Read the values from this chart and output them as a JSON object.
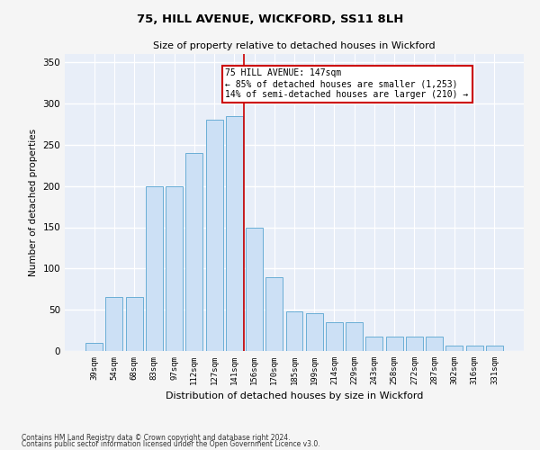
{
  "title": "75, HILL AVENUE, WICKFORD, SS11 8LH",
  "subtitle": "Size of property relative to detached houses in Wickford",
  "xlabel": "Distribution of detached houses by size in Wickford",
  "ylabel": "Number of detached properties",
  "bar_color": "#cce0f5",
  "bar_edge_color": "#6aaed6",
  "bg_color": "#e8eef8",
  "grid_color": "#ffffff",
  "fig_bg_color": "#f5f5f5",
  "categories": [
    "39sqm",
    "54sqm",
    "68sqm",
    "83sqm",
    "97sqm",
    "112sqm",
    "127sqm",
    "141sqm",
    "156sqm",
    "170sqm",
    "185sqm",
    "199sqm",
    "214sqm",
    "229sqm",
    "243sqm",
    "258sqm",
    "272sqm",
    "287sqm",
    "302sqm",
    "316sqm",
    "331sqm"
  ],
  "values": [
    10,
    65,
    65,
    200,
    200,
    240,
    280,
    285,
    150,
    90,
    48,
    46,
    35,
    35,
    18,
    18,
    18,
    18,
    7,
    7,
    7
  ],
  "ylim": [
    0,
    360
  ],
  "yticks": [
    0,
    50,
    100,
    150,
    200,
    250,
    300,
    350
  ],
  "vline_bin_index": 7,
  "vline_color": "#cc0000",
  "property_label": "75 HILL AVENUE: 147sqm",
  "annotation_line1": "← 85% of detached houses are smaller (1,253)",
  "annotation_line2": "14% of semi-detached houses are larger (210) →",
  "annotation_box_color": "#ffffff",
  "annotation_box_edge_color": "#cc0000",
  "footnote1": "Contains HM Land Registry data © Crown copyright and database right 2024.",
  "footnote2": "Contains public sector information licensed under the Open Government Licence v3.0."
}
